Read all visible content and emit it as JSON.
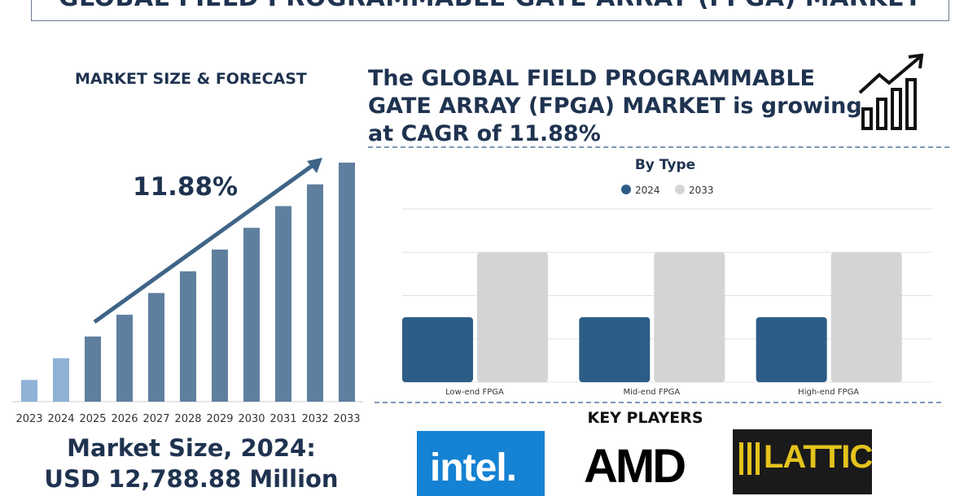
{
  "header": {
    "title": "GLOBAL FIELD PROGRAMMABLE GATE ARRAY (FPGA) MARKET"
  },
  "left": {
    "heading": "MARKET SIZE & FORECAST",
    "cagr_label": "11.88%",
    "market_size_line1": "Market Size, 2024:",
    "market_size_line2": "USD 12,788.88 Million"
  },
  "right": {
    "heading": "The GLOBAL FIELD PROGRAMMABLE GATE ARRAY (FPGA) MARKET is growing at CAGR of 11.88%"
  },
  "colors": {
    "navy": "#1f3350",
    "bar_light": "#8fb2d6",
    "bar_mid": "#5f7f9f",
    "series_2024": "#2d5d87",
    "series_2033": "#d4d4d4",
    "arrow": "#3e6487"
  },
  "chart_data": [
    {
      "type": "bar",
      "title": "",
      "categories": [
        "2023",
        "2024",
        "2025",
        "2026",
        "2027",
        "2028",
        "2029",
        "2030",
        "2031",
        "2032",
        "2033"
      ],
      "values": [
        1,
        2,
        3,
        4,
        5,
        6,
        7,
        8,
        9,
        10,
        11
      ],
      "annotation": "11.88%",
      "grid": false,
      "xlabel": "",
      "ylabel": ""
    },
    {
      "type": "bar",
      "title": "By Type",
      "categories": [
        "Low-end FPGA",
        "Mid-end FPGA",
        "High-end FPGA"
      ],
      "series": [
        {
          "name": "2024",
          "values": [
            30,
            30,
            30
          ]
        },
        {
          "name": "2033",
          "values": [
            60,
            60,
            60
          ]
        }
      ],
      "ylim": [
        0,
        80
      ],
      "grid": true,
      "legend": "top-center",
      "xlabel": "",
      "ylabel": ""
    }
  ],
  "key_players": {
    "title": "KEY PLAYERS",
    "logos": [
      {
        "name": "intel",
        "text": "intel."
      },
      {
        "name": "amd",
        "text": "AMD"
      },
      {
        "name": "lattice",
        "text": "LATTICE"
      }
    ]
  }
}
